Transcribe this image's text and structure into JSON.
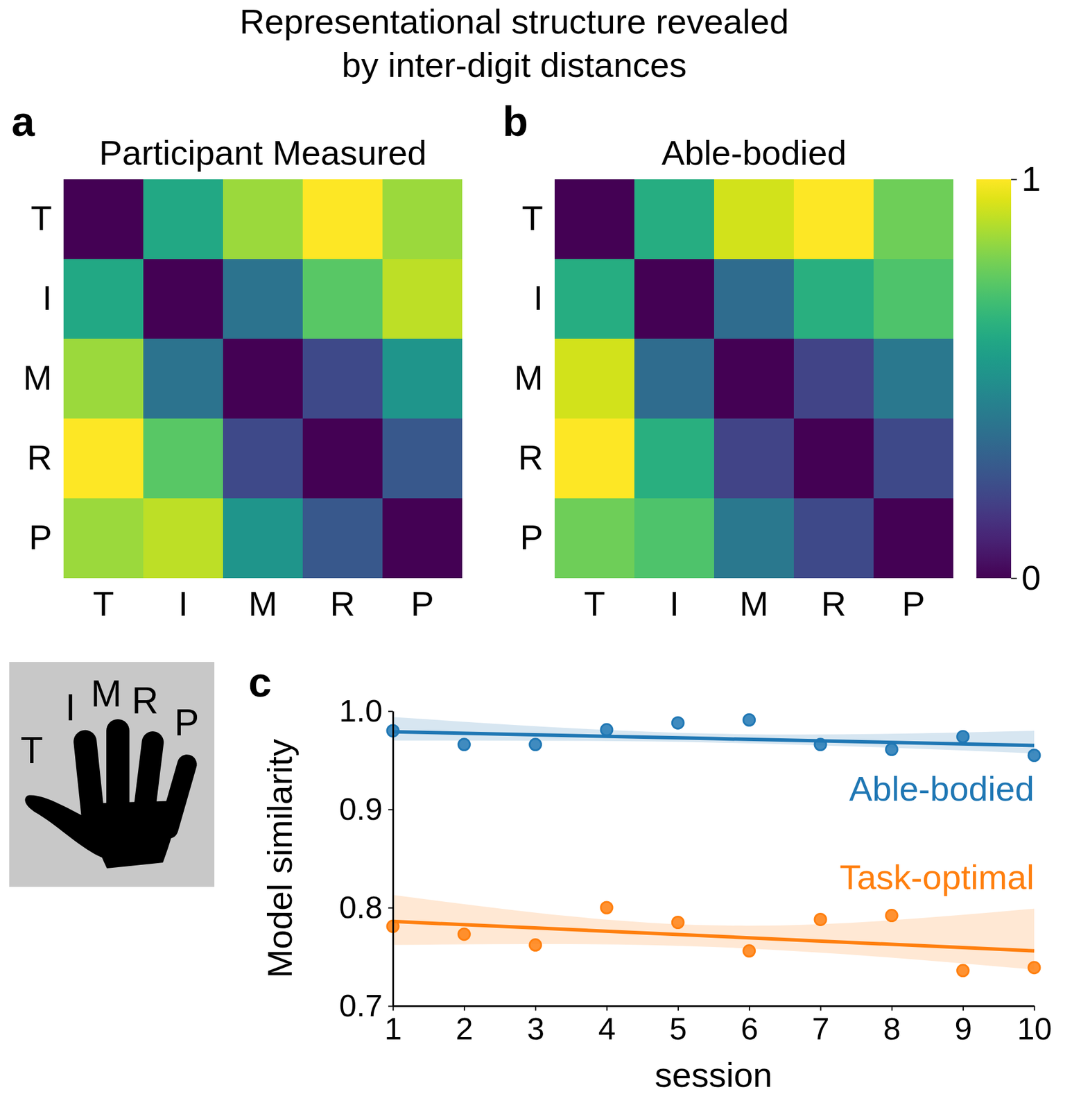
{
  "title": [
    "Representational structure revealed",
    "by inter-digit distances"
  ],
  "chart_data": [
    {
      "type": "heatmap",
      "panel": "a",
      "title": "Participant Measured",
      "categories": [
        "T",
        "I",
        "M",
        "R",
        "P"
      ],
      "values": [
        [
          0,
          0.6,
          0.85,
          1.0,
          0.85
        ],
        [
          0.6,
          0,
          0.38,
          0.74,
          0.9
        ],
        [
          0.85,
          0.38,
          0,
          0.22,
          0.52
        ],
        [
          1.0,
          0.74,
          0.22,
          0,
          0.27
        ],
        [
          0.85,
          0.9,
          0.52,
          0.27,
          0
        ]
      ]
    },
    {
      "type": "heatmap",
      "panel": "b",
      "title": "Able-bodied",
      "categories": [
        "T",
        "I",
        "M",
        "R",
        "P"
      ],
      "values": [
        [
          0,
          0.62,
          0.93,
          1.0,
          0.78
        ],
        [
          0.62,
          0,
          0.35,
          0.63,
          0.72
        ],
        [
          0.93,
          0.35,
          0,
          0.2,
          0.4
        ],
        [
          1.0,
          0.63,
          0.2,
          0,
          0.22
        ],
        [
          0.78,
          0.72,
          0.4,
          0.22,
          0
        ]
      ],
      "colorbar": {
        "range": [
          0,
          1
        ],
        "ticks": [
          0,
          1
        ]
      }
    },
    {
      "type": "scatter",
      "panel": "c",
      "x_label": "session",
      "y_label": "Model similarity",
      "marker": "circle",
      "x": [
        1,
        2,
        3,
        4,
        5,
        6,
        7,
        8,
        9,
        10
      ],
      "xlim": [
        1,
        10
      ],
      "xticks": [
        1,
        2,
        3,
        4,
        5,
        6,
        7,
        8,
        9,
        10
      ],
      "ylim": [
        0.7,
        1.0
      ],
      "yticks": [
        0.7,
        0.8,
        0.9,
        {
          "value": 1.0,
          "label": "1.0"
        }
      ],
      "inset_labels": [
        "T",
        "I",
        "M",
        "R",
        "P"
      ],
      "series": [
        {
          "name": "Able-bodied",
          "color": "#1f77b4",
          "values": [
            0.98,
            0.966,
            0.966,
            0.981,
            0.988,
            0.991,
            0.966,
            0.961,
            0.974,
            0.955
          ],
          "fit": {
            "x": [
              1,
              5.5,
              10
            ],
            "values": [
              0.979,
              0.972,
              0.965
            ],
            "lower": [
              0.97,
              0.968,
              0.957
            ],
            "upper": [
              0.994,
              0.977,
              0.98
            ]
          }
        },
        {
          "name": "Task-optimal",
          "color": "#ff7f0e",
          "values": [
            0.781,
            0.773,
            0.762,
            0.8,
            0.785,
            0.756,
            0.788,
            0.792,
            0.736,
            0.739
          ],
          "fit": {
            "x": [
              1,
              5.5,
              10
            ],
            "values": [
              0.786,
              0.771,
              0.756
            ],
            "lower": [
              0.762,
              0.76,
              0.737
            ],
            "upper": [
              0.813,
              0.782,
              0.799
            ]
          }
        }
      ]
    }
  ]
}
